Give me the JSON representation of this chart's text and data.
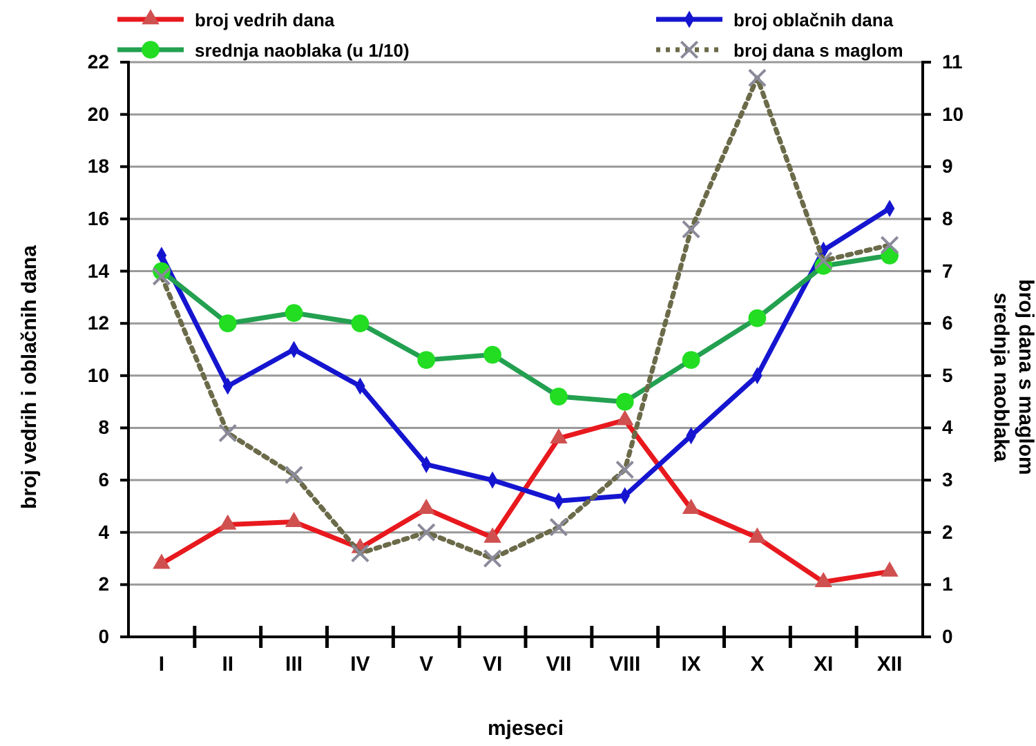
{
  "chart_data": {
    "type": "line",
    "xlabel": "mjeseci",
    "ylabel": "broj vedrih i oblačnih dana",
    "y2label": "broj dana s maglom\nsrednja naoblaka",
    "categories": [
      "I",
      "II",
      "III",
      "IV",
      "V",
      "VI",
      "VII",
      "VIII",
      "IX",
      "X",
      "XI",
      "XII"
    ],
    "ylim": [
      0,
      22
    ],
    "yticks": [
      0,
      2,
      4,
      6,
      8,
      10,
      12,
      14,
      16,
      18,
      20,
      22
    ],
    "y2lim": [
      0,
      11
    ],
    "y2ticks": [
      0,
      1,
      2,
      3,
      4,
      5,
      6,
      7,
      8,
      9,
      10,
      11
    ],
    "grid": "y",
    "legend": "top",
    "series": [
      {
        "name": "broj vedrih dana",
        "color": "#e8191e",
        "marker": "triangle",
        "line_style": "solid",
        "values": [
          2.8,
          4.3,
          4.4,
          3.4,
          4.9,
          3.8,
          7.6,
          8.3,
          4.9,
          3.8,
          2.1,
          2.5
        ]
      },
      {
        "name": "broj oblačnih dana",
        "color": "#1515d0",
        "marker": "diamond",
        "line_style": "solid",
        "values": [
          14.6,
          9.6,
          11.0,
          9.6,
          6.6,
          6.0,
          5.2,
          5.4,
          7.7,
          10.0,
          14.8,
          16.4
        ]
      },
      {
        "name": "srednja naoblaka  (u 1/10)",
        "color": "#23a050",
        "marker": "circle",
        "line_style": "solid",
        "axis": "y2",
        "values": [
          7.0,
          6.0,
          6.2,
          6.0,
          5.3,
          5.4,
          4.6,
          4.5,
          5.3,
          6.1,
          7.1,
          7.3
        ]
      },
      {
        "name": "broj dana s maglom",
        "color": "#6b6b4a",
        "marker": "cross",
        "line_style": "dotted",
        "axis": "y2",
        "values": [
          6.9,
          3.9,
          3.1,
          1.6,
          2.0,
          1.5,
          2.1,
          3.2,
          7.8,
          10.7,
          7.2,
          7.5
        ]
      }
    ]
  }
}
